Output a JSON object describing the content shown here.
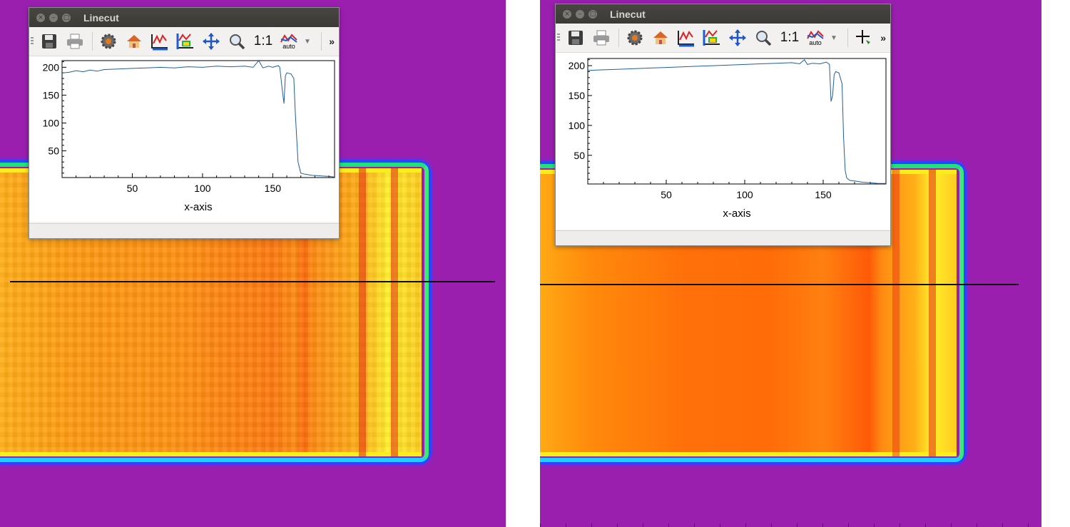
{
  "window_title": "Linecut",
  "window_buttons": [
    "×",
    "–",
    "□"
  ],
  "toolbar": {
    "icons": [
      "save-icon",
      "print-icon",
      "settings-gear-icon",
      "home-icon",
      "x-autoscale-icon",
      "y-autoscale-icon",
      "pan-icon",
      "zoom-icon"
    ],
    "aspect_label": "1:1",
    "auto_label": "auto",
    "more_label": "»"
  },
  "colors": {
    "background": "#9a1faf",
    "plot_line": "#1f5f9e",
    "titlebar": "#3f3e3a"
  },
  "chart_data": [
    {
      "type": "line",
      "title": "",
      "xlabel": "x-axis",
      "ylabel": "",
      "xlim": [
        0,
        194
      ],
      "ylim": [
        2,
        212
      ],
      "xticks": [
        50,
        100,
        150
      ],
      "yticks": [
        50,
        100,
        150,
        200
      ],
      "grid": false,
      "series": [
        {
          "x": [
            0,
            5,
            10,
            15,
            20,
            25,
            30,
            40,
            50,
            60,
            70,
            80,
            90,
            100,
            110,
            120,
            130,
            136,
            140,
            143,
            147,
            150,
            154,
            155,
            157,
            158,
            159,
            160,
            163,
            165,
            166,
            168,
            170,
            173,
            178,
            185,
            190,
            194
          ],
          "y": [
            190,
            191,
            194,
            192,
            195,
            193,
            196,
            197,
            198,
            199,
            200,
            199,
            201,
            200,
            202,
            201,
            202,
            200,
            212,
            199,
            202,
            200,
            203,
            200,
            155,
            135,
            185,
            190,
            188,
            180,
            120,
            30,
            10,
            8,
            6,
            5,
            4,
            3
          ]
        }
      ]
    },
    {
      "type": "line",
      "title": "",
      "xlabel": "x-axis",
      "ylabel": "",
      "xlim": [
        0,
        190
      ],
      "ylim": [
        2,
        212
      ],
      "xticks": [
        50,
        100,
        150
      ],
      "yticks": [
        50,
        100,
        150,
        200
      ],
      "grid": false,
      "series": [
        {
          "x": [
            0,
            10,
            20,
            30,
            40,
            50,
            60,
            70,
            80,
            90,
            100,
            110,
            120,
            130,
            135,
            138,
            140,
            143,
            148,
            152,
            154,
            155,
            156,
            157,
            158,
            160,
            162,
            163,
            164,
            165,
            167,
            170,
            175,
            180,
            185,
            190
          ],
          "y": [
            192,
            193,
            194,
            195,
            196,
            197,
            198,
            199,
            200,
            201,
            202,
            203,
            204,
            205,
            203,
            210,
            202,
            204,
            203,
            206,
            202,
            140,
            150,
            185,
            190,
            188,
            170,
            80,
            25,
            12,
            8,
            7,
            5,
            4,
            3,
            3
          ]
        }
      ]
    }
  ]
}
